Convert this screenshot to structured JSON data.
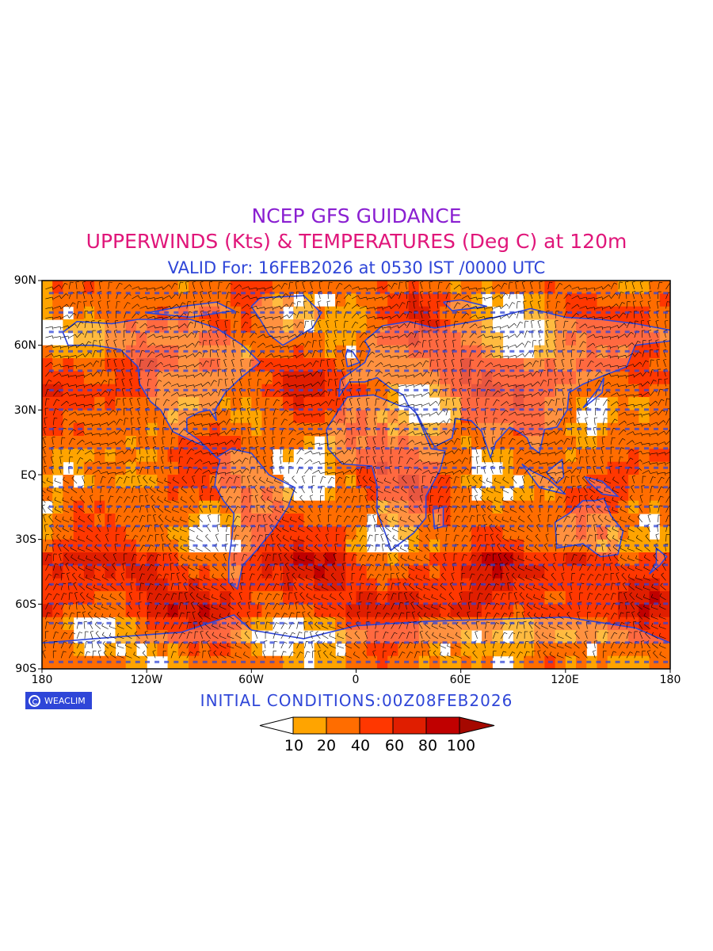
{
  "header": {
    "line1": "NCEP GFS GUIDANCE",
    "line2": "UPPERWINDS (Kts) & TEMPERATURES (Deg C) at 120m",
    "line3": "VALID For: 16FEB2026 at 0530 IST /0000 UTC"
  },
  "colors": {
    "line1": "#8a1fd1",
    "line2": "#e0167a",
    "line3": "#2f46d8",
    "coast": "#2f46d8",
    "barb": "#000000",
    "temp_text": "#2f46d8",
    "legend_fill": [
      "#ffa400",
      "#ff6d00",
      "#ff3700",
      "#e01e00",
      "#c00000",
      "#a50800"
    ]
  },
  "axes": {
    "lat_labels": [
      "90N",
      "60N",
      "30N",
      "EQ",
      "30S",
      "60S",
      "90S"
    ],
    "lon_labels": [
      "180",
      "120W",
      "60W",
      "0",
      "60E",
      "120E",
      "180"
    ]
  },
  "map": {
    "projection": "equirectangular",
    "field": "wind speed (Kts) shaded",
    "overlays": [
      "wind barbs",
      "temperature values (Deg C)",
      "coastlines"
    ]
  },
  "logo": {
    "text": "WEACLIM",
    "icon": "weaclim-logo-icon"
  },
  "footer": {
    "initial_conditions": "INITIAL CONDITIONS:00Z08FEB2026"
  },
  "legend": {
    "labels": [
      "10",
      "20",
      "40",
      "60",
      "80",
      "100"
    ],
    "extends": "both"
  }
}
